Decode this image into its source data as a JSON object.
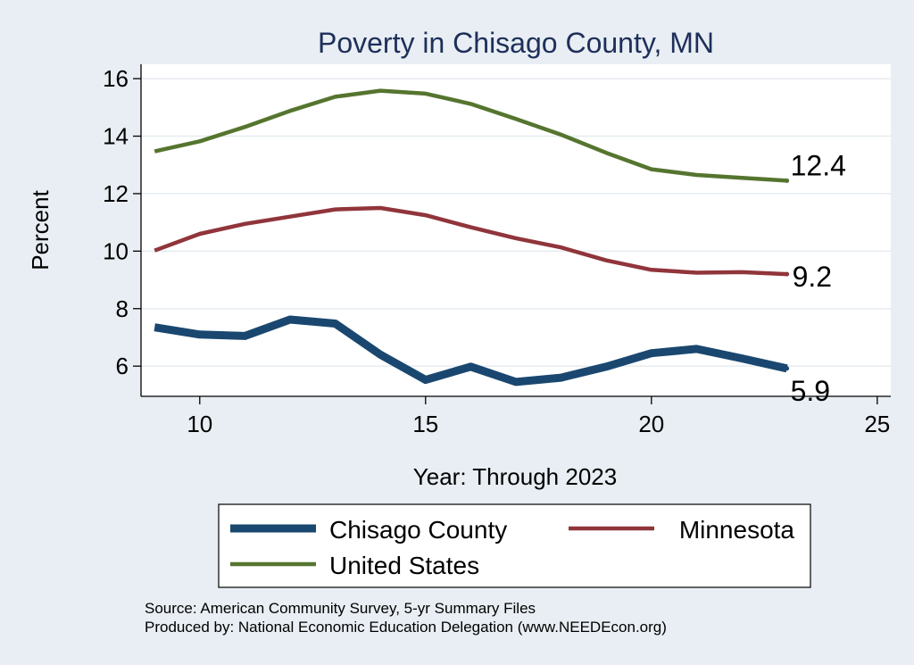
{
  "chart_data": {
    "type": "line",
    "title": "Poverty in Chisago County, MN",
    "xlabel": "Year: Through 2023",
    "ylabel": "Percent",
    "xlim": [
      8.7,
      25.3
    ],
    "ylim": [
      4.95,
      16.5
    ],
    "xticks": [
      10,
      15,
      20,
      25
    ],
    "yticks": [
      6,
      8,
      10,
      12,
      14,
      16
    ],
    "grid": true,
    "legend_position": "bottom",
    "series": [
      {
        "name": "Chisago County",
        "color": "#1a476f",
        "x": [
          9,
          10,
          11,
          12,
          13,
          14,
          15,
          16,
          17,
          18,
          19,
          20,
          21,
          22,
          23
        ],
        "y": [
          7.35,
          7.1,
          7.05,
          7.62,
          7.48,
          6.4,
          5.52,
          5.98,
          5.45,
          5.6,
          5.98,
          6.45,
          6.6,
          6.27,
          5.92
        ],
        "end_label": "5.9"
      },
      {
        "name": "Minnesota",
        "color": "#90353b",
        "x": [
          9,
          10,
          11,
          12,
          13,
          14,
          15,
          16,
          17,
          18,
          19,
          20,
          21,
          22,
          23
        ],
        "y": [
          10.02,
          10.6,
          10.95,
          11.2,
          11.45,
          11.5,
          11.25,
          10.83,
          10.45,
          10.13,
          9.68,
          9.35,
          9.25,
          9.27,
          9.2
        ],
        "end_label": "9.2"
      },
      {
        "name": "United States",
        "color": "#55752f",
        "x": [
          9,
          10,
          11,
          12,
          13,
          14,
          15,
          16,
          17,
          18,
          19,
          20,
          21,
          22,
          23
        ],
        "y": [
          13.47,
          13.82,
          14.32,
          14.88,
          15.37,
          15.58,
          15.48,
          15.12,
          14.6,
          14.05,
          13.42,
          12.85,
          12.65,
          12.55,
          12.45
        ],
        "end_label": "12.4"
      }
    ]
  },
  "source": {
    "line1": "Source: American Community Survey, 5-yr Summary Files",
    "line2": "Produced by: National Economic Education Delegation (www.NEEDEcon.org)"
  }
}
